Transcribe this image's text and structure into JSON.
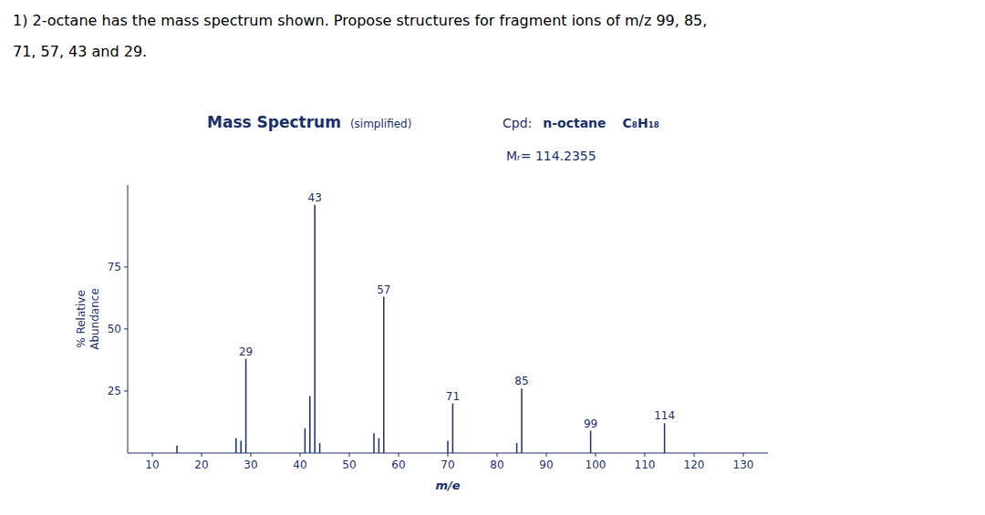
{
  "chart_data": {
    "type": "stem",
    "header": [
      "1) 2-octane has the mass spectrum shown. Propose structures for fragment ions of m/z 99, 85,",
      "71, 57, 43 and 29."
    ],
    "title": "Mass Spectrum",
    "subtitle": "(simplified)",
    "compound_label": "Cpd:",
    "compound_name": "n-octane",
    "formula": "C₈H₁₈",
    "molar_mass_label": "Mᵣ= 114.2355",
    "x_label": "m/e",
    "y_label": "% Relative\nAbundance",
    "color": "#1b2f6b",
    "grid": false,
    "x": [
      15,
      27,
      28,
      29,
      41,
      42,
      43,
      44,
      55,
      56,
      57,
      70,
      71,
      84,
      85,
      99,
      114
    ],
    "values": [
      3,
      6,
      5,
      38,
      10,
      23,
      100,
      4,
      8,
      6,
      63,
      5,
      20,
      4,
      26,
      9,
      12
    ],
    "annotations": [
      {
        "text": "29",
        "x": 29,
        "y": 38
      },
      {
        "text": "43",
        "x": 43,
        "y": 100
      },
      {
        "text": "57",
        "x": 57,
        "y": 63
      },
      {
        "text": "71",
        "x": 71,
        "y": 20
      },
      {
        "text": "85",
        "x": 85,
        "y": 26
      },
      {
        "text": "99",
        "x": 99,
        "y": 9
      },
      {
        "text": "114",
        "x": 114,
        "y": 12
      }
    ],
    "xlim": [
      5,
      135
    ],
    "ylim": [
      0,
      108
    ],
    "xticks": [
      10,
      20,
      30,
      40,
      50,
      60,
      70,
      80,
      90,
      100,
      110,
      120,
      130
    ],
    "yticks": [
      25,
      50,
      75
    ]
  }
}
